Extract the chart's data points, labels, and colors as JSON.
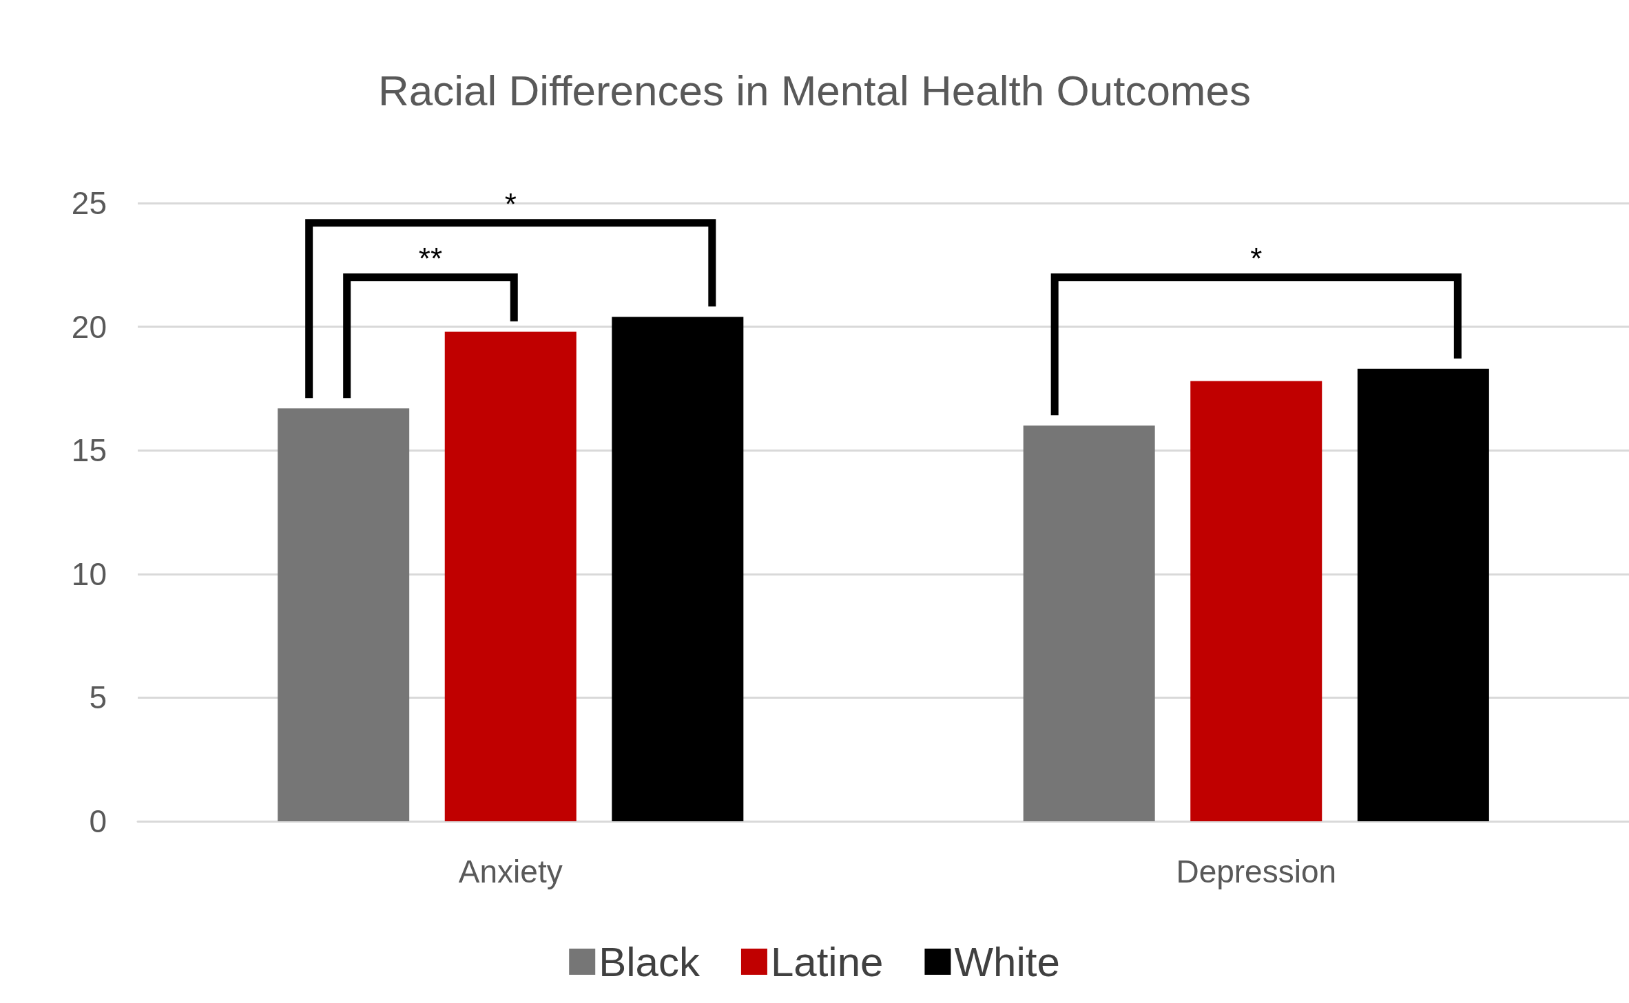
{
  "chart_data": {
    "type": "bar",
    "title": "Racial Differences in Mental Health Outcomes",
    "categories": [
      "Anxiety",
      "Depression"
    ],
    "series": [
      {
        "name": "Black",
        "color": "#767676",
        "values": [
          16.7,
          16.0
        ]
      },
      {
        "name": "Latine",
        "color": "#c00000",
        "values": [
          19.8,
          17.8
        ]
      },
      {
        "name": "White",
        "color": "#000000",
        "values": [
          20.4,
          18.3
        ]
      }
    ],
    "ylim": [
      0,
      25
    ],
    "yticks": [
      0,
      5,
      10,
      15,
      20,
      25
    ],
    "grid": "y",
    "legend": "bottom",
    "annotations": [
      "*",
      "**",
      "*"
    ]
  }
}
